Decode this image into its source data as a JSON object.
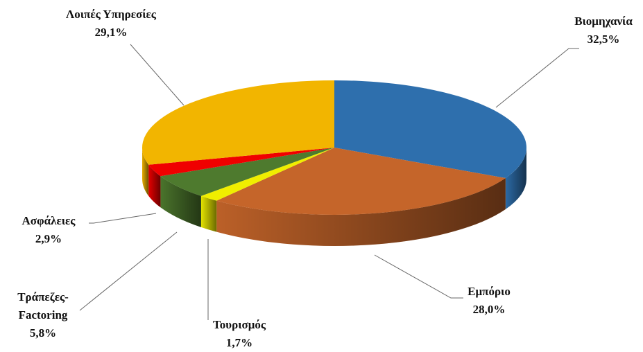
{
  "chart_data": {
    "type": "pie",
    "categories": [
      "Βιομηχανία",
      "Εμπόριο",
      "Τουρισμός",
      "Τράπεζες-Factoring",
      "Ασφάλειες",
      "Λοιπές Υπηρεσίες"
    ],
    "values": [
      32.5,
      28.0,
      1.7,
      5.8,
      2.9,
      29.1
    ],
    "value_labels": [
      "32,5%",
      "28,0%",
      "1,7%",
      "5,8%",
      "2,9%",
      "29,1%"
    ],
    "colors": [
      "#2e6fad",
      "#c5652a",
      "#f0ee00",
      "#4e7a2e",
      "#f00000",
      "#f2b500"
    ]
  }
}
